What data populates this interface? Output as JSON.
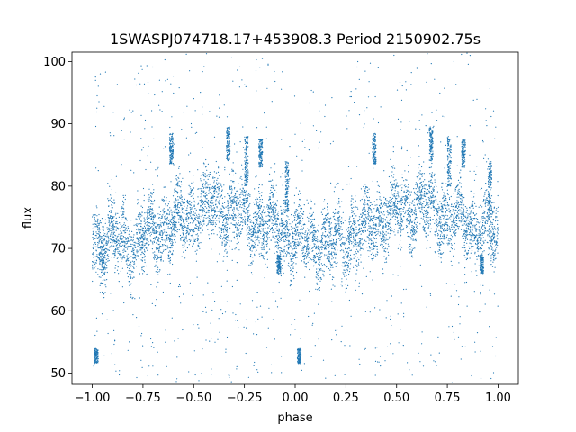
{
  "chart_data": {
    "type": "scatter",
    "title": "1SWASPJ074718.17+453908.3 Period 2150902.75s",
    "xlabel": "phase",
    "ylabel": "flux",
    "xlim": [
      -1.1,
      1.1
    ],
    "ylim": [
      48.2,
      101.5
    ],
    "x_ticks": [
      -1.0,
      -0.75,
      -0.5,
      -0.25,
      0.0,
      0.25,
      0.5,
      0.75,
      1.0
    ],
    "x_tick_labels": [
      "−1.00",
      "−0.75",
      "−0.50",
      "−0.25",
      "0.00",
      "0.25",
      "0.50",
      "0.75",
      "1.00"
    ],
    "y_ticks": [
      50,
      60,
      70,
      80,
      90,
      100
    ],
    "y_tick_labels": [
      "50",
      "60",
      "70",
      "80",
      "90",
      "100"
    ],
    "grid": false,
    "legend": "none",
    "series": [
      {
        "color": "#1f77b4",
        "marker_size": 0.6,
        "profile": {
          "phase": [
            0.0,
            0.05,
            0.1,
            0.15,
            0.2,
            0.25,
            0.3,
            0.35,
            0.4,
            0.45,
            0.5,
            0.55,
            0.6,
            0.65,
            0.7,
            0.75,
            0.8,
            0.85,
            0.9,
            0.95,
            1.0
          ],
          "median_flux": [
            71.5,
            71.0,
            71.5,
            71.0,
            70.5,
            71.5,
            72.5,
            73.5,
            74.0,
            75.0,
            76.0,
            76.5,
            77.0,
            76.5,
            76.0,
            75.0,
            74.5,
            74.0,
            73.5,
            72.5,
            72.0
          ],
          "spread": 3.5
        },
        "bands": [
          {
            "x": 0.39,
            "low": 83.5,
            "high": 88.5
          },
          {
            "x": -0.61,
            "low": 83.5,
            "high": 88.5
          },
          {
            "x": 0.67,
            "low": 84,
            "high": 89.5
          },
          {
            "x": -0.33,
            "low": 84,
            "high": 89.5
          },
          {
            "x": 0.83,
            "low": 83,
            "high": 87.5
          },
          {
            "x": -0.17,
            "low": 83,
            "high": 87.5
          },
          {
            "x": 0.76,
            "low": 80,
            "high": 88
          },
          {
            "x": -0.24,
            "low": 80,
            "high": 88
          },
          {
            "x": 0.96,
            "low": 76,
            "high": 84
          },
          {
            "x": -0.04,
            "low": 76,
            "high": 84
          },
          {
            "x": 0.02,
            "low": 51.5,
            "high": 54
          },
          {
            "x": -0.98,
            "low": 51.5,
            "high": 54
          },
          {
            "x": 0.92,
            "low": 66,
            "high": 69
          },
          {
            "x": -0.08,
            "low": 66,
            "high": 69
          }
        ]
      }
    ]
  }
}
